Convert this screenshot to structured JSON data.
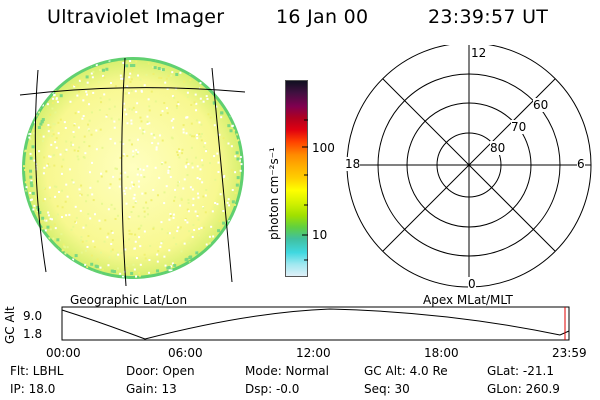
{
  "header": {
    "instrument": "Ultraviolet Imager",
    "date": "16 Jan 00",
    "time": "23:39:57 UT"
  },
  "colorbar": {
    "unit_label": "photon cm⁻²s⁻¹",
    "tick_labels": [
      "100",
      "10"
    ],
    "colors": [
      "#101020",
      "#401040",
      "#800050",
      "#b00020",
      "#e00010",
      "#ff4000",
      "#ff8c00",
      "#ffb000",
      "#ffd000",
      "#ffff00",
      "#d0f000",
      "#a0e000",
      "#60d040",
      "#40c0a0",
      "#40d8e0",
      "#a0e8f0",
      "#e0f0f8"
    ]
  },
  "left_panel": {
    "caption": "Geographic Lat/Lon",
    "disk_colors": {
      "fill": "#fafa9a",
      "speckle": "#ffffff",
      "edge": "#60d070"
    }
  },
  "right_panel": {
    "caption": "Apex MLat/MLT",
    "mlt_labels": {
      "top": "12",
      "left": "18",
      "right": "6",
      "bottom": "0"
    },
    "lat_labels": [
      "60",
      "70",
      "80"
    ]
  },
  "altitude_plot": {
    "ylabel": "GC Alt",
    "y_ticks": [
      "9.0",
      "1.8"
    ],
    "x_ticks": [
      "00:00",
      "06:00",
      "12:00",
      "18:00",
      "23:59"
    ],
    "marker_color": "#e00000"
  },
  "params": {
    "flt": "Flt: LBHL",
    "ip": "IP: 18.0",
    "door": "Door: Open",
    "gain": "Gain: 13",
    "mode": "Mode: Normal",
    "dsp": "Dsp:   -0.0",
    "gcalt": "GC Alt: 4.0 Re",
    "seq": "Seq: 30",
    "glat": "GLat: -21.1",
    "glon": "GLon: 260.9"
  }
}
